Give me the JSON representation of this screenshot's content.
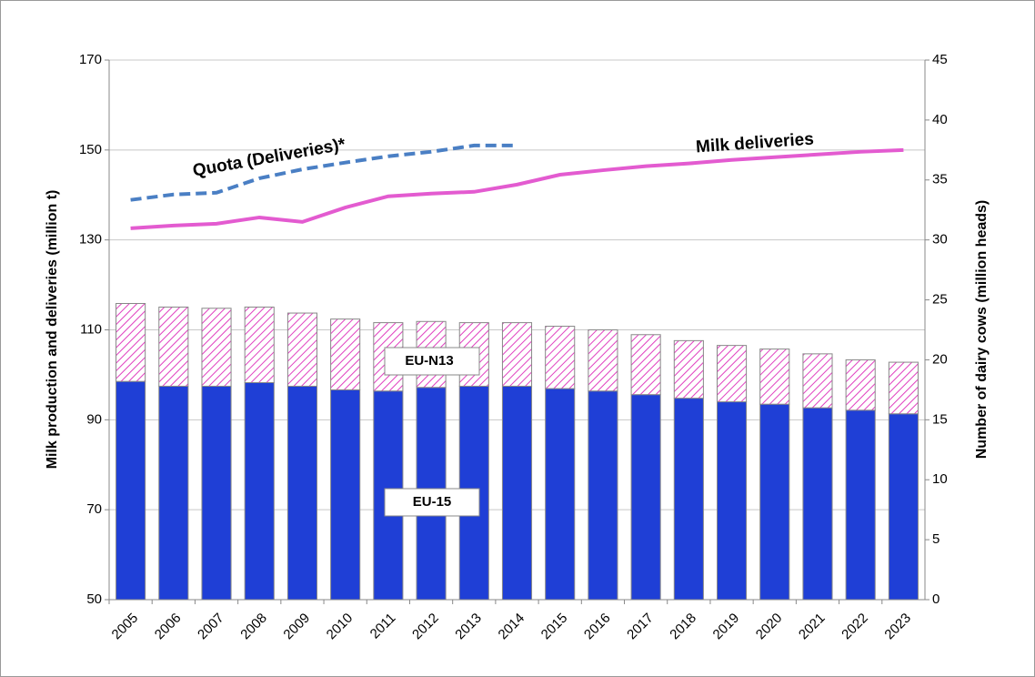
{
  "chart_data": {
    "type": "combo",
    "categories": [
      "2005",
      "2006",
      "2007",
      "2008",
      "2009",
      "2010",
      "2011",
      "2012",
      "2013",
      "2014",
      "2015",
      "2016",
      "2017",
      "2018",
      "2019",
      "2020",
      "2021",
      "2022",
      "2023"
    ],
    "y_label": "Milk production and deliveries (million t)",
    "y2_label": "Number of dairy cows (million heads)",
    "ylim": [
      50,
      170
    ],
    "yticks": [
      50,
      70,
      90,
      110,
      130,
      150,
      170
    ],
    "y2lim": [
      0,
      45
    ],
    "y2ticks": [
      0,
      5,
      10,
      15,
      20,
      25,
      30,
      35,
      40,
      45
    ],
    "grid": true,
    "series": [
      {
        "name": "EU-15",
        "type": "bar",
        "axis": "y2",
        "color": "#1f3fd6",
        "pattern": "solid",
        "values": [
          18.2,
          17.8,
          17.8,
          18.1,
          17.8,
          17.5,
          17.4,
          17.7,
          17.8,
          17.8,
          17.6,
          17.4,
          17.1,
          16.8,
          16.5,
          16.3,
          16.0,
          15.8,
          15.5
        ]
      },
      {
        "name": "EU-N13",
        "type": "bar",
        "axis": "y2",
        "color": "#e040c0",
        "pattern": "hatch",
        "values": [
          6.5,
          6.6,
          6.5,
          6.3,
          6.1,
          5.9,
          5.7,
          5.5,
          5.3,
          5.3,
          5.2,
          5.1,
          5.0,
          4.8,
          4.7,
          4.6,
          4.5,
          4.2,
          4.3
        ]
      },
      {
        "name": "Milk deliveries",
        "type": "line",
        "axis": "y",
        "color": "#e35bd0",
        "dash": false,
        "values": [
          132.6,
          133.2,
          133.6,
          135.0,
          134.0,
          137.2,
          139.7,
          140.3,
          140.7,
          142.3,
          144.5,
          145.5,
          146.4,
          147.0,
          147.8,
          148.4,
          149.0,
          149.6,
          150.0
        ]
      },
      {
        "name": "Quota (Deliveries)*",
        "type": "line",
        "axis": "y",
        "color": "#4a7fc4",
        "dash": true,
        "values": [
          138.9,
          140.1,
          140.5,
          143.7,
          145.7,
          147.2,
          148.6,
          149.6,
          151.0,
          151.0,
          null,
          null,
          null,
          null,
          null,
          null,
          null,
          null,
          null
        ]
      }
    ]
  }
}
